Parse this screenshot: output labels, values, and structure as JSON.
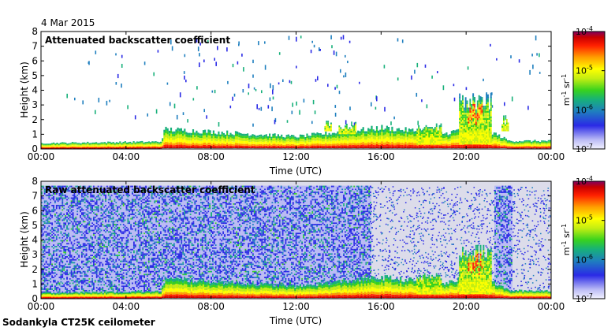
{
  "date": "4 Mar 2015",
  "footer": "Sodankyla CT25K ceilometer",
  "colorbar_unit": {
    "base": "m",
    "exp1": "-1",
    "mid": " sr",
    "exp2": "-1"
  },
  "colors": {
    "background": "#ffffff",
    "raw_background": "#dcdcea",
    "scale": [
      "#f2f2ff",
      "#b9b9f5",
      "#2a2ae6",
      "#1f7fbf",
      "#17b07a",
      "#38d21e",
      "#c4ee12",
      "#ffff00",
      "#ff9f00",
      "#ff2000",
      "#c80000",
      "#800060"
    ]
  },
  "chart_data": [
    {
      "type": "heatmap",
      "title": "Attenuated backscatter coefficient",
      "xlabel": "Time (UTC)",
      "ylabel": "Height (km)",
      "xlim": [
        "00:00",
        "24:00"
      ],
      "ylim": [
        0,
        8
      ],
      "xticks": [
        "00:00",
        "04:00",
        "08:00",
        "12:00",
        "16:00",
        "20:00",
        "00:00"
      ],
      "yticks": [
        "0",
        "1",
        "2",
        "3",
        "4",
        "5",
        "6",
        "7",
        "8"
      ],
      "colorbar": {
        "scale": "log",
        "range": [
          1e-07,
          0.0001
        ],
        "tick_labels": [
          {
            "base": "10",
            "exp": "-7"
          },
          {
            "base": "10",
            "exp": "-6"
          },
          {
            "base": "10",
            "exp": "-5"
          },
          {
            "base": "10",
            "exp": "-4"
          }
        ]
      },
      "features": {
        "boundary_layer_top_km": [
          [
            0,
            0.35
          ],
          [
            5.6,
            0.45
          ],
          [
            5.8,
            1.3
          ],
          [
            12,
            0.8
          ],
          [
            16,
            1.4
          ],
          [
            19,
            1.0
          ],
          [
            20.5,
            1.6
          ],
          [
            22,
            0.5
          ],
          [
            24,
            0.5
          ]
        ],
        "clouds": [
          {
            "start": "19:40",
            "end": "21:10",
            "base_km": 0.3,
            "top_km": 3.3,
            "max_km": 3.9
          },
          {
            "start": "17:40",
            "end": "18:50",
            "base_km": 0.3,
            "top_km": 1.5
          },
          {
            "start": "14:00",
            "end": "14:50",
            "base_km": 1.0,
            "top_km": 1.6
          },
          {
            "start": "13:20",
            "end": "13:40",
            "base_km": 1.2,
            "top_km": 1.8
          },
          {
            "start": "21:40",
            "end": "22:00",
            "base_km": 1.2,
            "top_km": 2.0
          }
        ],
        "sparse_signal_top_km": 7.6
      }
    },
    {
      "type": "heatmap",
      "title": "Raw attenuated backscatter coefficient",
      "xlabel": "Time (UTC)",
      "ylabel": "Height (km)",
      "xlim": [
        "00:00",
        "24:00"
      ],
      "ylim": [
        0,
        8
      ],
      "xticks": [
        "00:00",
        "04:00",
        "08:00",
        "12:00",
        "16:00",
        "20:00",
        "00:00"
      ],
      "yticks": [
        "0",
        "1",
        "2",
        "3",
        "4",
        "5",
        "6",
        "7",
        "8"
      ],
      "colorbar": {
        "scale": "log",
        "range": [
          1e-07,
          0.0001
        ],
        "tick_labels": [
          {
            "base": "10",
            "exp": "-7"
          },
          {
            "base": "10",
            "exp": "-6"
          },
          {
            "base": "10",
            "exp": "-5"
          },
          {
            "base": "10",
            "exp": "-4"
          }
        ]
      },
      "features": {
        "noise_top_km": 7.6,
        "noise_periods": [
          [
            "00:00",
            "15:30"
          ],
          [
            "21:20",
            "22:10"
          ]
        ],
        "quiet_periods": [
          [
            "15:30",
            "21:20"
          ],
          [
            "22:10",
            "24:00"
          ]
        ],
        "clouds": [
          {
            "start": "19:40",
            "end": "21:10",
            "base_km": 0.3,
            "top_km": 3.3
          },
          {
            "start": "17:40",
            "end": "18:50",
            "base_km": 0.3,
            "top_km": 1.5
          }
        ]
      }
    }
  ]
}
